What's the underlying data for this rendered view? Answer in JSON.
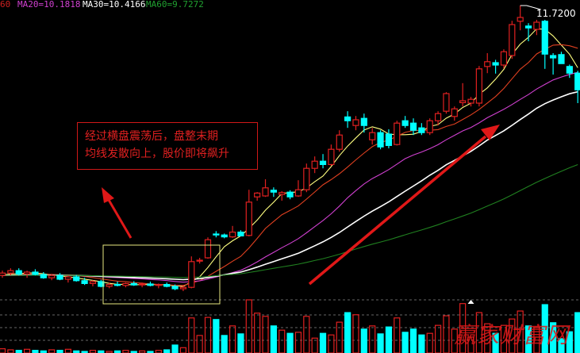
{
  "header": {
    "fragment": {
      "text": "60",
      "color": "#d02020"
    },
    "ma_labels": [
      {
        "text": "MA20=10.1818",
        "color": "#d040d0"
      },
      {
        "text": "MA30=10.4166",
        "color": "#ffffff"
      },
      {
        "text": "MA60=9.7272",
        "color": "#20a030"
      }
    ]
  },
  "annotation": {
    "line1": "经过横盘震荡后，盘整末期",
    "line2": "均线发散向上，股价即将飙升"
  },
  "watermark": "赢家财富网",
  "chart_data": {
    "type": "candlestick",
    "high_label": "11.7200",
    "colors": {
      "up": "#e02020",
      "down": "#00ffff",
      "ma5": "#ffff80",
      "ma10": "#e04020",
      "ma20": "#d040d0",
      "ma30": "#ffffff",
      "ma60": "#208020"
    },
    "moving_averages": [
      5,
      10,
      20,
      30,
      60
    ],
    "ohlc": [
      [
        6.05,
        6.15,
        6.0,
        6.1
      ],
      [
        6.1,
        6.2,
        6.05,
        6.15
      ],
      [
        6.15,
        6.2,
        6.05,
        6.08
      ],
      [
        6.08,
        6.15,
        6.0,
        6.12
      ],
      [
        6.12,
        6.18,
        6.05,
        6.07
      ],
      [
        6.07,
        6.12,
        5.98,
        6.0
      ],
      [
        6.0,
        6.08,
        5.95,
        6.05
      ],
      [
        6.05,
        6.1,
        5.95,
        5.97
      ],
      [
        5.97,
        6.05,
        5.9,
        6.02
      ],
      [
        6.02,
        6.06,
        5.92,
        5.94
      ],
      [
        5.94,
        6.0,
        5.85,
        5.88
      ],
      [
        5.88,
        5.95,
        5.82,
        5.92
      ],
      [
        5.92,
        5.96,
        5.8,
        5.82
      ],
      [
        5.82,
        5.9,
        5.78,
        5.86
      ],
      [
        5.86,
        5.92,
        5.82,
        5.84
      ],
      [
        5.84,
        5.9,
        5.8,
        5.88
      ],
      [
        5.88,
        5.93,
        5.83,
        5.85
      ],
      [
        5.85,
        5.9,
        5.8,
        5.87
      ],
      [
        5.87,
        5.92,
        5.82,
        5.84
      ],
      [
        5.84,
        5.88,
        5.78,
        5.86
      ],
      [
        5.86,
        5.9,
        5.8,
        5.82
      ],
      [
        5.82,
        5.86,
        5.74,
        5.77
      ],
      [
        5.77,
        5.85,
        5.72,
        5.8
      ],
      [
        5.8,
        6.45,
        5.78,
        6.34
      ],
      [
        6.36,
        6.42,
        6.3,
        6.37
      ],
      [
        6.42,
        6.85,
        6.4,
        6.8
      ],
      [
        6.92,
        6.98,
        6.85,
        6.9
      ],
      [
        6.9,
        6.93,
        6.83,
        6.86
      ],
      [
        6.86,
        7.09,
        6.84,
        6.96
      ],
      [
        6.96,
        7.0,
        6.9,
        6.88
      ],
      [
        6.89,
        7.85,
        6.87,
        7.59
      ],
      [
        7.7,
        7.8,
        7.62,
        7.78
      ],
      [
        7.72,
        8.07,
        7.7,
        7.89
      ],
      [
        7.84,
        7.9,
        7.7,
        7.8
      ],
      [
        7.75,
        7.82,
        7.62,
        7.79
      ],
      [
        7.8,
        7.84,
        7.65,
        7.7
      ],
      [
        7.72,
        8.05,
        7.7,
        7.85
      ],
      [
        7.85,
        8.4,
        7.8,
        8.3
      ],
      [
        8.3,
        8.55,
        8.2,
        8.45
      ],
      [
        8.45,
        8.6,
        8.3,
        8.38
      ],
      [
        8.38,
        8.8,
        8.35,
        8.7
      ],
      [
        8.7,
        9.1,
        8.65,
        9.0
      ],
      [
        9.38,
        9.5,
        9.15,
        9.3
      ],
      [
        9.2,
        9.4,
        9.1,
        9.32
      ],
      [
        9.35,
        9.45,
        9.05,
        9.2
      ],
      [
        8.9,
        9.15,
        8.8,
        9.05
      ],
      [
        9.05,
        9.1,
        8.7,
        8.75
      ],
      [
        9.02,
        9.12,
        8.72,
        8.78
      ],
      [
        8.8,
        9.3,
        8.78,
        9.25
      ],
      [
        9.3,
        9.4,
        9.15,
        9.2
      ],
      [
        9.25,
        9.35,
        9.0,
        9.1
      ],
      [
        9.15,
        9.25,
        9.0,
        9.05
      ],
      [
        9.05,
        9.35,
        9.0,
        9.3
      ],
      [
        9.3,
        9.5,
        9.2,
        9.45
      ],
      [
        9.5,
        9.9,
        9.45,
        9.87
      ],
      [
        9.39,
        9.6,
        9.3,
        9.55
      ],
      [
        9.68,
        10.09,
        9.6,
        9.72
      ],
      [
        9.67,
        9.8,
        9.6,
        9.75
      ],
      [
        9.67,
        10.45,
        9.6,
        10.39
      ],
      [
        10.44,
        10.72,
        10.3,
        10.54
      ],
      [
        10.52,
        10.58,
        10.29,
        10.47
      ],
      [
        10.47,
        10.8,
        10.4,
        10.75
      ],
      [
        10.67,
        11.4,
        10.6,
        11.32
      ],
      [
        11.39,
        11.72,
        11.2,
        11.47
      ],
      [
        11.29,
        11.35,
        10.97,
        11.25
      ],
      [
        11.22,
        11.42,
        11.1,
        11.37
      ],
      [
        11.39,
        11.42,
        10.39,
        10.7
      ],
      [
        10.67,
        10.72,
        10.27,
        10.62
      ],
      [
        10.69,
        10.75,
        10.5,
        10.5
      ],
      [
        10.44,
        10.48,
        10.2,
        10.3
      ],
      [
        10.3,
        10.35,
        9.67,
        9.95
      ]
    ],
    "volume": [
      8,
      6,
      5,
      7,
      5,
      4,
      6,
      5,
      7,
      4,
      3,
      5,
      4,
      3,
      4,
      5,
      3,
      4,
      3,
      5,
      6,
      15,
      10,
      66,
      33,
      67,
      63,
      33,
      51,
      36,
      100,
      75,
      69,
      51,
      43,
      37,
      39,
      69,
      28,
      37,
      34,
      58,
      76,
      72,
      45,
      51,
      36,
      49,
      66,
      39,
      45,
      34,
      37,
      52,
      70,
      45,
      93,
      30,
      76,
      55,
      37,
      52,
      64,
      79,
      51,
      48,
      91,
      57,
      27,
      40,
      76
    ],
    "volume_marker_index": 57,
    "grid": "dashed horizontal lines in volume panel"
  }
}
